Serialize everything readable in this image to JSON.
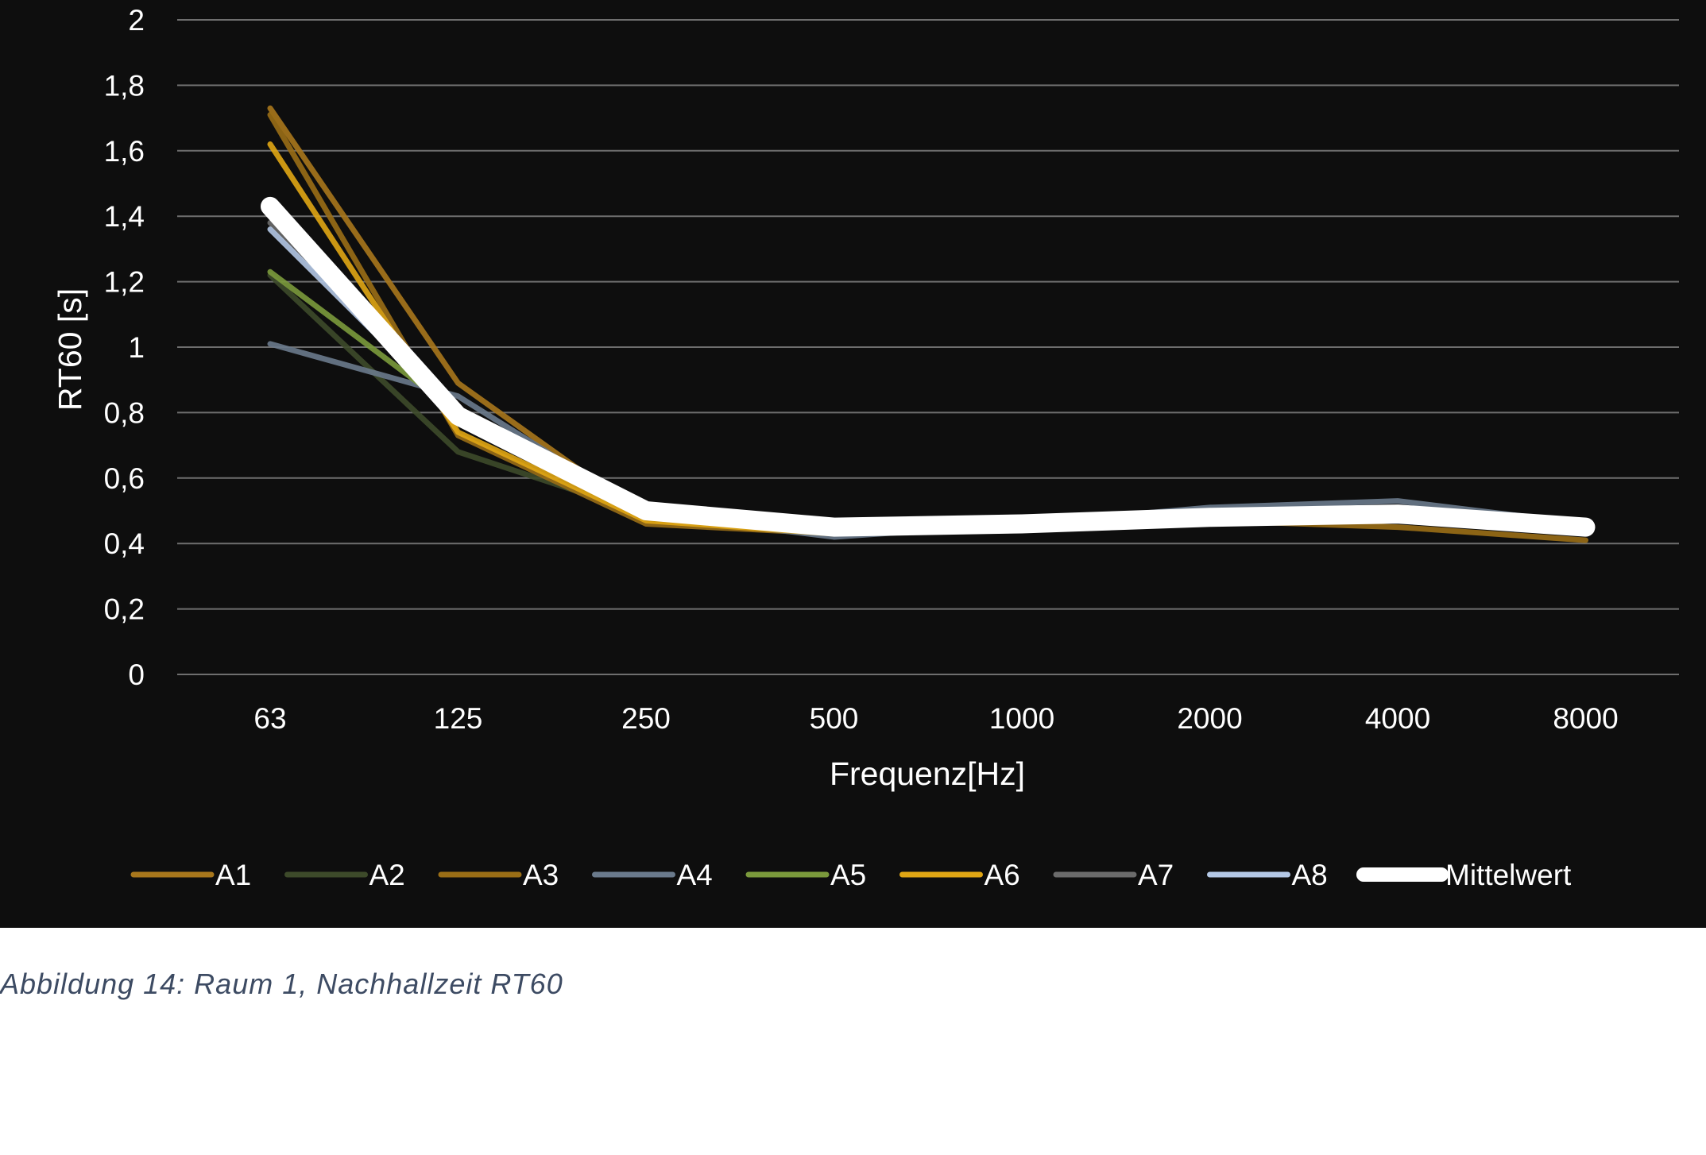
{
  "caption": "Abbildung 14: Raum 1, Nachhallzeit RT60",
  "chart_data": {
    "type": "line",
    "title": "",
    "xlabel": "Frequenz[Hz]",
    "ylabel": "RT60 [s]",
    "categories": [
      "63",
      "125",
      "250",
      "500",
      "1000",
      "2000",
      "4000",
      "8000"
    ],
    "ylim": [
      0,
      2
    ],
    "yticks": [
      "0",
      "0,2",
      "0,4",
      "0,6",
      "0,8",
      "1",
      "1,2",
      "1,4",
      "1,6",
      "1,8",
      "2"
    ],
    "grid": true,
    "legend_position": "bottom",
    "series": [
      {
        "name": "A1",
        "color": "#a8771c",
        "values": [
          1.73,
          0.89,
          0.48,
          0.44,
          0.46,
          0.48,
          0.49,
          0.44
        ]
      },
      {
        "name": "A2",
        "color": "#3d4a2a",
        "values": [
          1.22,
          0.68,
          0.49,
          0.45,
          0.47,
          0.49,
          0.5,
          0.45
        ]
      },
      {
        "name": "A3",
        "color": "#9a6e16",
        "values": [
          1.71,
          0.73,
          0.46,
          0.43,
          0.45,
          0.47,
          0.45,
          0.41
        ]
      },
      {
        "name": "A4",
        "color": "#6a7a8c",
        "values": [
          1.01,
          0.85,
          0.49,
          0.42,
          0.46,
          0.51,
          0.53,
          0.46
        ]
      },
      {
        "name": "A5",
        "color": "#7b9a3c",
        "values": [
          1.23,
          0.8,
          0.5,
          0.45,
          0.46,
          0.48,
          0.49,
          0.45
        ]
      },
      {
        "name": "A6",
        "color": "#e0a614",
        "values": [
          1.62,
          0.74,
          0.47,
          0.43,
          0.46,
          0.48,
          0.48,
          0.43
        ]
      },
      {
        "name": "A7",
        "color": "#6b6b6b",
        "values": [
          1.38,
          0.81,
          0.49,
          0.44,
          0.46,
          0.49,
          0.5,
          0.45
        ]
      },
      {
        "name": "A8",
        "color": "#b4c8e6",
        "values": [
          1.36,
          0.79,
          0.5,
          0.44,
          0.46,
          0.49,
          0.5,
          0.45
        ]
      },
      {
        "name": "Mittelwert",
        "color": "#ffffff",
        "values": [
          1.43,
          0.79,
          0.5,
          0.45,
          0.46,
          0.48,
          0.49,
          0.45
        ]
      }
    ]
  }
}
